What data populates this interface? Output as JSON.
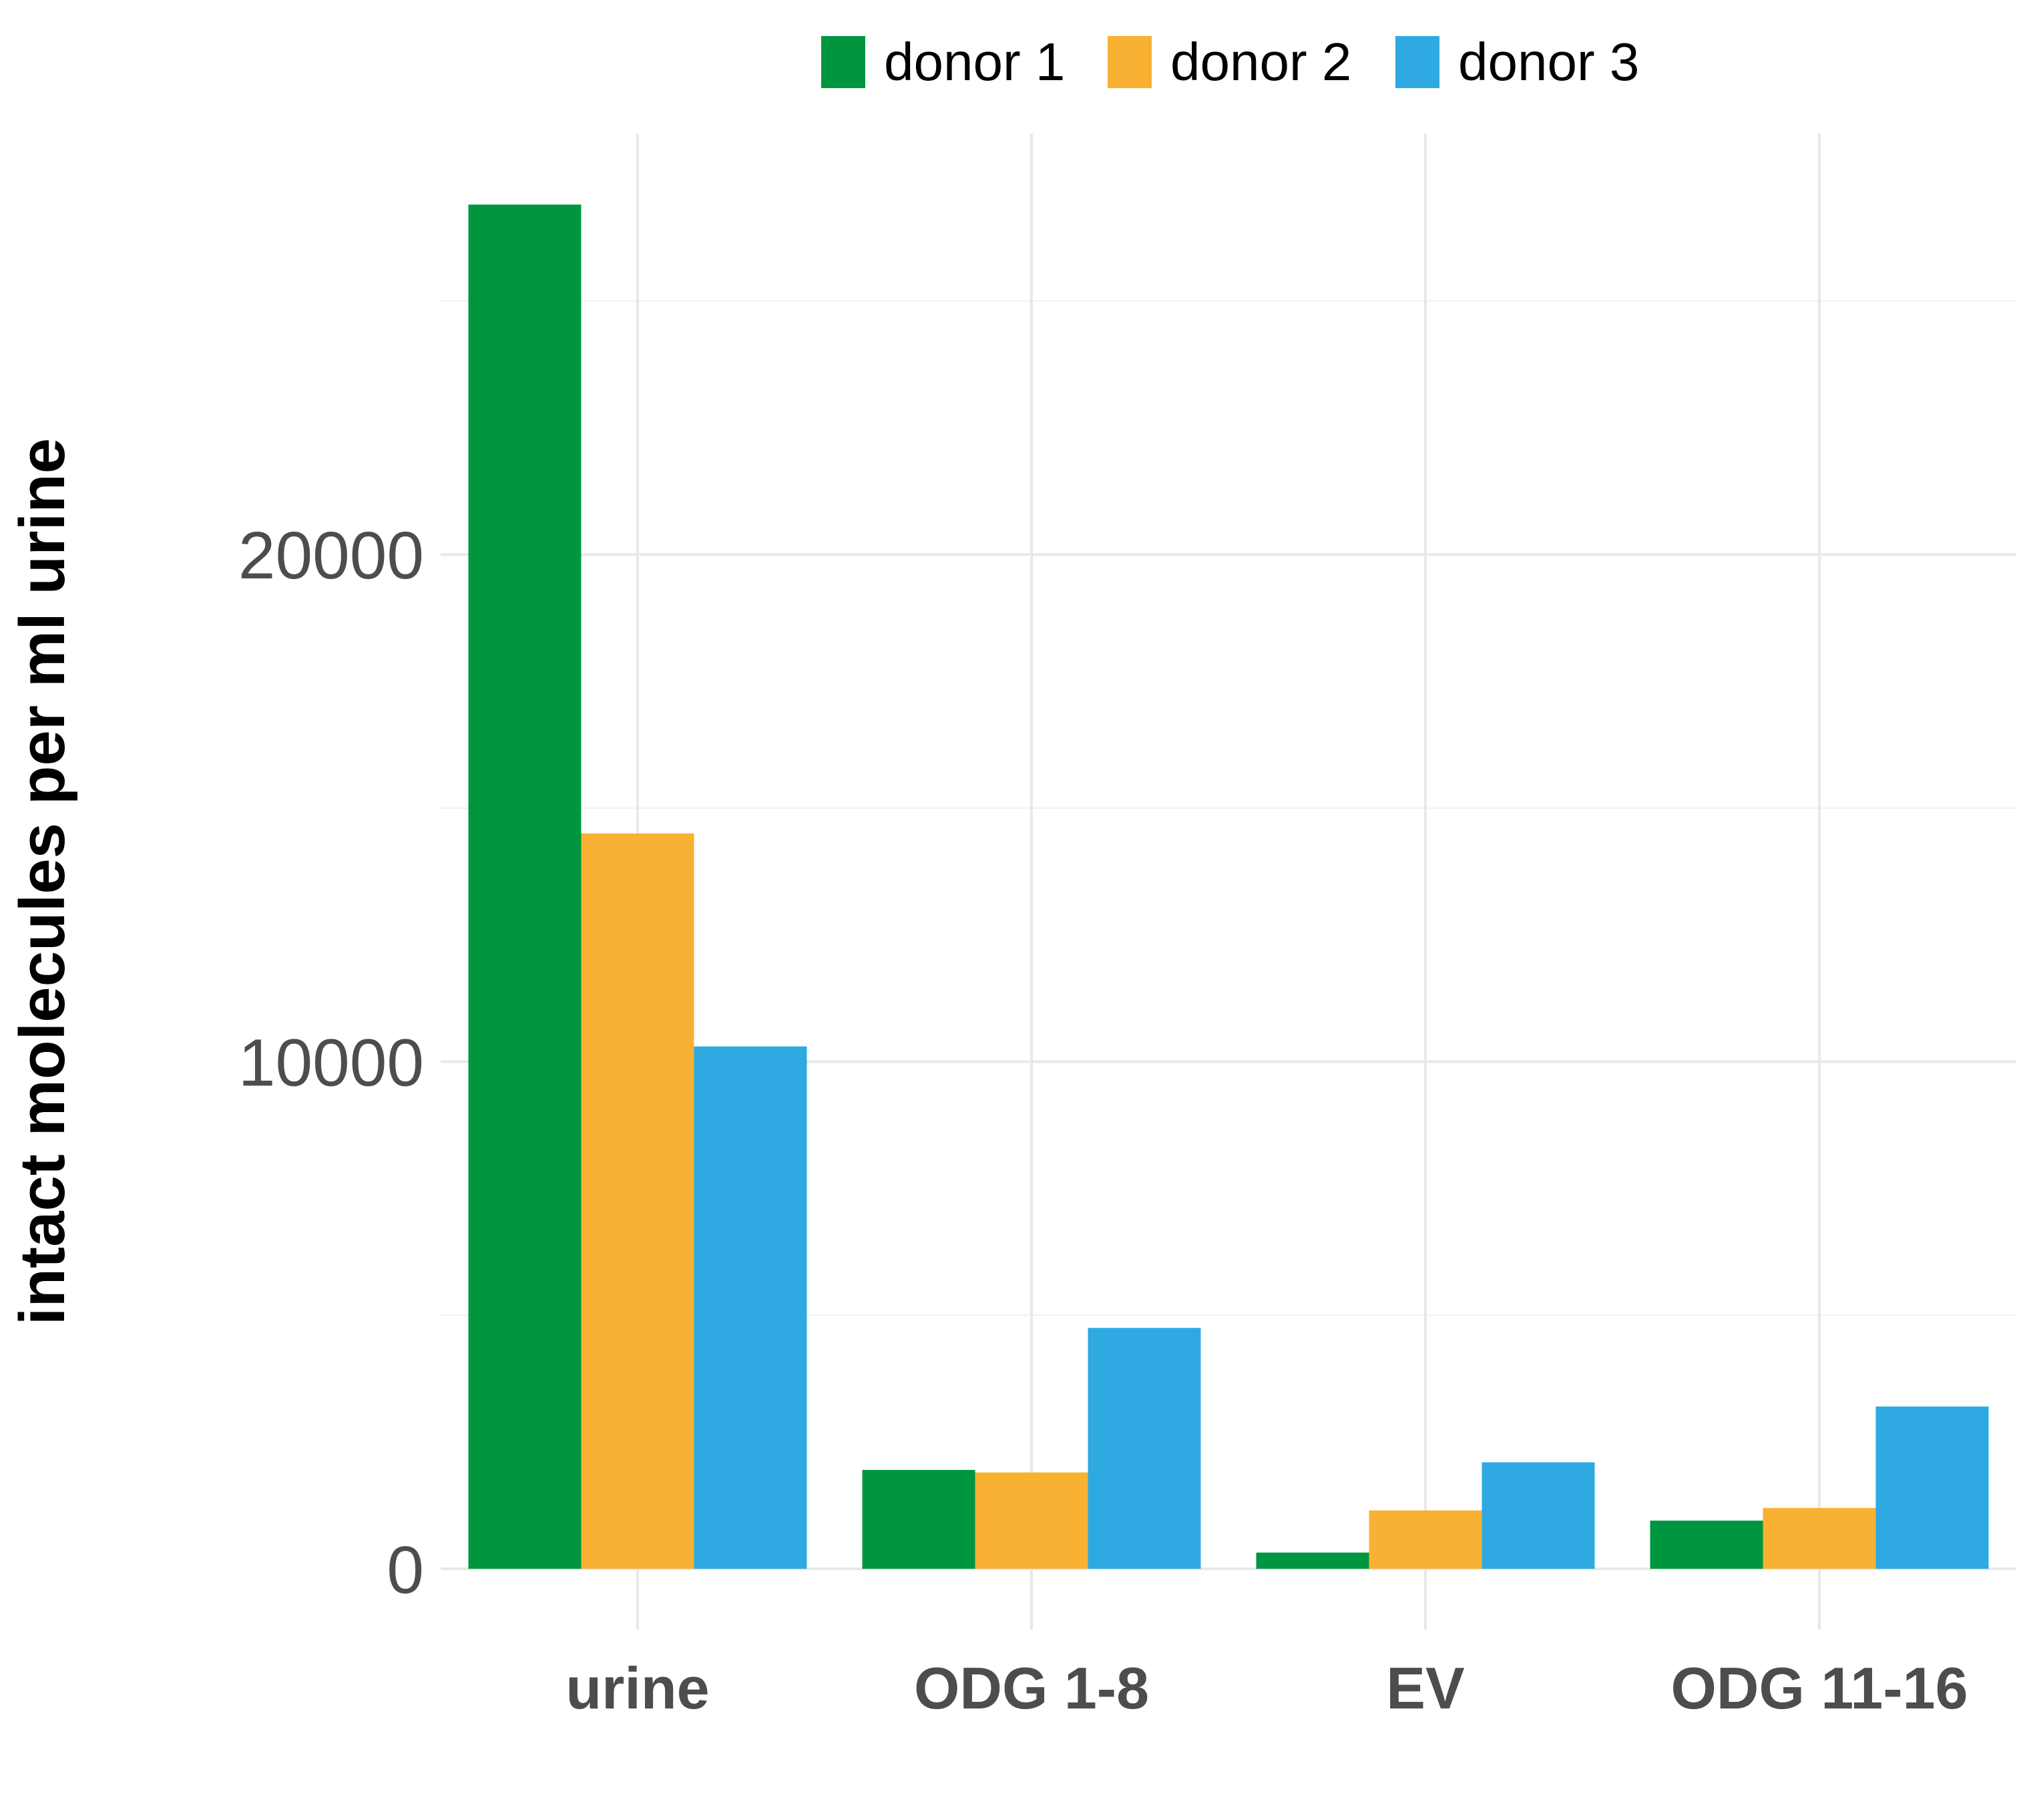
{
  "chart_data": {
    "type": "bar",
    "title": "",
    "xlabel": "",
    "ylabel": "intact molecules per ml urine",
    "categories": [
      "urine",
      "ODG 1-8",
      "EV",
      "ODG 11-16"
    ],
    "series": [
      {
        "name": "donor 1",
        "color": "#009640",
        "values": [
          26900,
          1950,
          320,
          950
        ]
      },
      {
        "name": "donor 2",
        "color": "#F8B133",
        "values": [
          14500,
          1900,
          1150,
          1200
        ]
      },
      {
        "name": "donor 3",
        "color": "#2FA9E1",
        "values": [
          10300,
          4750,
          2100,
          3200
        ]
      }
    ],
    "yticks": [
      0,
      10000,
      20000
    ],
    "ytick_labels": [
      "0",
      "10000",
      "20000"
    ],
    "ylim": [
      -1200,
      28300
    ],
    "grid": true,
    "legend_position": "top-center"
  }
}
